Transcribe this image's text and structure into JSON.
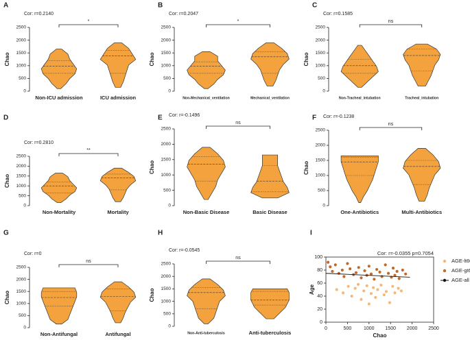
{
  "chart_data": [
    {
      "type": "violin",
      "panel": "A",
      "title": "Cor: r=0.2140",
      "significance": "*",
      "ylabel": "Chao",
      "ylim": [
        0,
        2500
      ],
      "yticks": [
        0,
        500,
        1000,
        1500,
        2000,
        2500
      ],
      "color": "#f3a23d",
      "violins": [
        {
          "category": "Non-ICU admission",
          "min": 100,
          "q1": 700,
          "median": 980,
          "q3": 1200,
          "max": 1650,
          "density": [
            0.1,
            0.4,
            0.6,
            0.9,
            1,
            0.8,
            0.6,
            0.5,
            0.15
          ]
        },
        {
          "category": "ICU admission",
          "min": 150,
          "q1": 700,
          "median": 1380,
          "q3": 1600,
          "max": 1900,
          "density": [
            0.15,
            0.3,
            0.4,
            0.5,
            0.6,
            1,
            0.8,
            0.6,
            0.2
          ]
        }
      ]
    },
    {
      "type": "violin",
      "panel": "B",
      "title": "Cor: r=0.2047",
      "significance": "*",
      "ylabel": "Chao",
      "ylim": [
        0,
        2500
      ],
      "yticks": [
        0,
        500,
        1000,
        1500,
        2000,
        2500
      ],
      "color": "#f3a23d",
      "violins": [
        {
          "category": "Non-Mechanical_ventilation",
          "min": 100,
          "q1": 700,
          "median": 980,
          "q3": 1150,
          "max": 1550,
          "density": [
            0.1,
            0.4,
            0.6,
            0.9,
            1,
            0.8,
            0.6,
            0.6,
            0.2
          ]
        },
        {
          "category": "Mechanical_ventilation",
          "min": 200,
          "q1": 700,
          "median": 1350,
          "q3": 1550,
          "max": 1900,
          "density": [
            0.15,
            0.3,
            0.4,
            0.5,
            0.7,
            1,
            0.9,
            0.6,
            0.2
          ]
        }
      ]
    },
    {
      "type": "violin",
      "panel": "C",
      "title": "Cor: r=0.1585",
      "significance": "ns",
      "ylabel": "Chao",
      "ylim": [
        0,
        2500
      ],
      "yticks": [
        0,
        500,
        1000,
        1500,
        2000,
        2500
      ],
      "color": "#f3a23d",
      "violins": [
        {
          "category": "Non-Tracheal_intubation",
          "min": 150,
          "q1": 700,
          "median": 1000,
          "q3": 1250,
          "max": 1800,
          "density": [
            0.1,
            0.4,
            0.7,
            1,
            0.9,
            0.7,
            0.5,
            0.3,
            0.1
          ]
        },
        {
          "category": "Tracheal_intubation",
          "min": 200,
          "q1": 800,
          "median": 1400,
          "q3": 1650,
          "max": 1850,
          "density": [
            0.2,
            0.35,
            0.5,
            0.6,
            0.7,
            0.9,
            1,
            0.8,
            0.3
          ]
        }
      ]
    },
    {
      "type": "violin",
      "panel": "D",
      "title": "Cor: r=0.2810",
      "significance": "**",
      "ylabel": "Chao",
      "ylim": [
        0,
        2500
      ],
      "yticks": [
        0,
        500,
        1000,
        1500,
        2000,
        2500
      ],
      "color": "#f3a23d",
      "violins": [
        {
          "category": "Non-Mortality",
          "min": 150,
          "q1": 650,
          "median": 1000,
          "q3": 1200,
          "max": 1650,
          "density": [
            0.1,
            0.4,
            0.6,
            0.9,
            1,
            0.8,
            0.6,
            0.5,
            0.2
          ]
        },
        {
          "category": "Mortality",
          "min": 200,
          "q1": 800,
          "median": 1400,
          "q3": 1600,
          "max": 1900,
          "density": [
            0.15,
            0.3,
            0.4,
            0.5,
            0.7,
            1,
            0.9,
            0.6,
            0.2
          ]
        }
      ]
    },
    {
      "type": "violin",
      "panel": "E",
      "title": "Cor: r=-0.1496",
      "significance": "ns",
      "ylabel": "Chao",
      "ylim": [
        0,
        2500
      ],
      "yticks": [
        0,
        500,
        1000,
        1500,
        2000,
        2500
      ],
      "color": "#f3a23d",
      "violins": [
        {
          "category": "Non-Basic Disease",
          "min": 200,
          "q1": 800,
          "median": 1350,
          "q3": 1600,
          "max": 1900,
          "density": [
            0.1,
            0.3,
            0.5,
            0.6,
            0.8,
            1,
            0.9,
            0.6,
            0.2
          ]
        },
        {
          "category": "Basic Disease",
          "min": 250,
          "q1": 450,
          "median": 800,
          "q3": 1300,
          "max": 1650,
          "density": [
            0.4,
            1,
            0.9,
            0.7,
            0.6,
            0.5,
            0.4,
            0.4,
            0.4
          ]
        }
      ]
    },
    {
      "type": "violin",
      "panel": "F",
      "title": "Cor: r=-0.1238",
      "significance": "ns",
      "ylabel": "Chao",
      "ylim": [
        0,
        2500
      ],
      "yticks": [
        0,
        500,
        1000,
        1500,
        2000,
        2500
      ],
      "color": "#f3a23d",
      "violins": [
        {
          "category": "One-Antibiotics",
          "min": 100,
          "q1": 1000,
          "median": 1450,
          "q3": 1600,
          "max": 1650,
          "density": [
            0.05,
            0.2,
            0.4,
            0.55,
            0.7,
            0.8,
            0.9,
            1,
            1
          ]
        },
        {
          "category": "Multi-Antibiotics",
          "min": 150,
          "q1": 700,
          "median": 1300,
          "q3": 1500,
          "max": 1900,
          "density": [
            0.15,
            0.3,
            0.4,
            0.55,
            0.7,
            1,
            0.9,
            0.6,
            0.2
          ]
        }
      ]
    },
    {
      "type": "violin",
      "panel": "G",
      "title": "Cor: r=0",
      "significance": "ns",
      "ylabel": "Chao",
      "ylim": [
        0,
        2500
      ],
      "yticks": [
        0,
        500,
        1000,
        1500,
        2000,
        2500
      ],
      "color": "#f3a23d",
      "violins": [
        {
          "category": "Non-Antifungal",
          "min": 150,
          "q1": 900,
          "median": 1250,
          "q3": 1500,
          "max": 1650,
          "density": [
            0.15,
            0.5,
            0.6,
            0.7,
            0.8,
            0.9,
            1,
            1,
            0.9
          ]
        },
        {
          "category": "Antifungal",
          "min": 200,
          "q1": 700,
          "median": 1300,
          "q3": 1600,
          "max": 1900,
          "density": [
            0.15,
            0.3,
            0.4,
            0.55,
            0.7,
            1,
            0.9,
            0.6,
            0.2
          ]
        }
      ]
    },
    {
      "type": "violin",
      "panel": "H",
      "title": "Cor: r=-0.0545",
      "significance": "ns",
      "ylabel": "Chao",
      "ylim": [
        0,
        2500
      ],
      "yticks": [
        0,
        500,
        1000,
        1500,
        2000,
        2500
      ],
      "color": "#f3a23d",
      "violins": [
        {
          "category": "Non-Anti-tuberculosis",
          "min": 100,
          "q1": 700,
          "median": 1350,
          "q3": 1550,
          "max": 1900,
          "density": [
            0.1,
            0.4,
            0.5,
            0.6,
            0.7,
            1,
            0.9,
            0.6,
            0.2
          ]
        },
        {
          "category": "Anti-tuberculosis",
          "min": 300,
          "q1": 850,
          "median": 1050,
          "q3": 1400,
          "max": 1500,
          "density": [
            0.2,
            0.4,
            0.6,
            0.8,
            0.9,
            1,
            1,
            1,
            0.9
          ]
        }
      ]
    },
    {
      "type": "scatter",
      "panel": "I",
      "title": "Cor: r=-0.0355 p=0.7054",
      "xlabel": "Chao",
      "ylabel": "Age",
      "xlim": [
        0,
        2500
      ],
      "xticks": [
        0,
        500,
        1000,
        1500,
        2000,
        2500
      ],
      "ylim": [
        0,
        100
      ],
      "yticks": [
        0,
        20,
        40,
        60,
        80,
        100
      ],
      "series": [
        {
          "name": "AGE-lt60",
          "color": "#f5b87a",
          "x": [
            250,
            400,
            520,
            600,
            680,
            750,
            820,
            880,
            950,
            1000,
            1050,
            1100,
            1150,
            1200,
            1280,
            1350,
            1400,
            1480,
            1550,
            1600,
            1680,
            1750
          ],
          "values": [
            50,
            45,
            55,
            40,
            52,
            58,
            35,
            48,
            56,
            28,
            44,
            53,
            38,
            50,
            57,
            42,
            47,
            30,
            55,
            45,
            52,
            48
          ]
        },
        {
          "name": "AGE-gt60",
          "color": "#c0692a",
          "x": [
            50,
            100,
            150,
            220,
            300,
            380,
            420,
            500,
            560,
            640,
            700,
            760,
            820,
            900,
            950,
            1000,
            1050,
            1120,
            1180,
            1250,
            1300,
            1380,
            1450,
            1520,
            1560,
            1600,
            1650,
            1700,
            1780,
            1850
          ],
          "values": [
            92,
            85,
            78,
            88,
            75,
            80,
            70,
            90,
            82,
            73,
            76,
            84,
            68,
            79,
            72,
            86,
            74,
            66,
            81,
            77,
            70,
            88,
            75,
            69,
            83,
            72,
            78,
            67,
            80,
            74
          ]
        },
        {
          "name": "AGE-all",
          "color": "#111111",
          "line": true,
          "x": [
            0,
            1950
          ],
          "values": [
            75,
            69
          ]
        }
      ]
    }
  ]
}
